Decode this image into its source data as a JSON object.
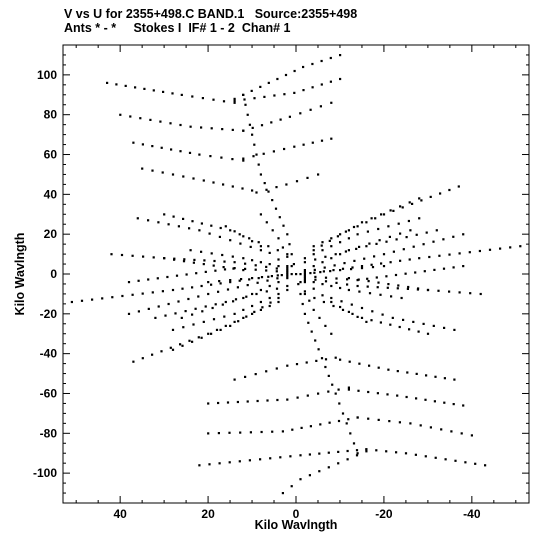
{
  "header": {
    "line1": "V vs U for 2355+498.C BAND.1   Source:2355+498",
    "line2": "Ants * - *     Stokes I  IF# 1 - 2  Chan# 1"
  },
  "chart_data": {
    "type": "scatter",
    "title": "V vs U for 2355+498.C BAND.1   Source:2355+498",
    "subtitle": "Ants * - *     Stokes I  IF# 1 - 2  Chan# 1",
    "xlabel": "Kilo Wavlngth",
    "ylabel": "Kilo Wavlngth",
    "xlim": [
      53,
      -53
    ],
    "ylim": [
      -115,
      115
    ],
    "x_ticks": [
      40,
      20,
      0,
      -20,
      -40
    ],
    "y_ticks": [
      100,
      80,
      60,
      40,
      20,
      0,
      -20,
      -40,
      -60,
      -80,
      -100
    ],
    "x_tick_labels": [
      "40",
      "20",
      "0",
      "-20",
      "-40"
    ],
    "y_tick_labels": [
      "100",
      "80",
      "60",
      "40",
      "20",
      "0",
      "-20",
      "-40",
      "-60",
      "-80",
      "-100"
    ],
    "grid": false,
    "marker_color": "#000000",
    "tracks": [
      {
        "points": [
          [
            -10,
            110
          ],
          [
            -1.6,
            104
          ],
          [
            14,
            88
          ]
        ]
      },
      {
        "points": [
          [
            -10,
            98
          ],
          [
            0.4,
            91
          ],
          [
            14,
            87
          ]
        ]
      },
      {
        "points": [
          [
            43,
            96
          ],
          [
            26,
            90
          ],
          [
            14,
            86
          ]
        ]
      },
      {
        "points": [
          [
            -8,
            86
          ],
          [
            1.4,
            79
          ],
          [
            12,
            72
          ]
        ]
      },
      {
        "points": [
          [
            40,
            80
          ],
          [
            24,
            74
          ],
          [
            12,
            72
          ]
        ]
      },
      {
        "points": [
          [
            -8,
            68
          ],
          [
            0.4,
            64
          ],
          [
            12,
            58
          ]
        ]
      },
      {
        "points": [
          [
            37,
            66
          ],
          [
            22,
            60
          ],
          [
            12,
            57
          ]
        ]
      },
      {
        "points": [
          [
            -5,
            50
          ],
          [
            2.2,
            45
          ],
          [
            9,
            41
          ]
        ]
      },
      {
        "points": [
          [
            35,
            53
          ],
          [
            21,
            47
          ],
          [
            10,
            42
          ]
        ]
      },
      {
        "points": [
          [
            12,
            90
          ],
          [
            8,
            50
          ],
          [
            2,
            20
          ],
          [
            0,
            0
          ],
          [
            -2,
            -20
          ],
          [
            -9,
            -60
          ],
          [
            -14,
            -90
          ]
        ]
      },
      {
        "points": [
          [
            3,
            -110
          ],
          [
            -1,
            -103
          ],
          [
            -16,
            -89
          ]
        ]
      },
      {
        "points": [
          [
            22,
            -96
          ],
          [
            -1,
            -91
          ],
          [
            -16,
            -88
          ]
        ]
      },
      {
        "points": [
          [
            -43,
            -96
          ],
          [
            -25,
            -90
          ],
          [
            -16,
            -88
          ]
        ]
      },
      {
        "points": [
          [
            20,
            -80
          ],
          [
            3,
            -79
          ],
          [
            -14,
            -72
          ]
        ]
      },
      {
        "points": [
          [
            -40,
            -81
          ],
          [
            -26,
            -75
          ],
          [
            -14,
            -72
          ]
        ]
      },
      {
        "points": [
          [
            20,
            -65
          ],
          [
            2,
            -63
          ],
          [
            -12,
            -57
          ]
        ]
      },
      {
        "points": [
          [
            -38,
            -66
          ],
          [
            -23,
            -61
          ],
          [
            -12,
            -58
          ]
        ]
      },
      {
        "points": [
          [
            14,
            -53
          ],
          [
            2,
            -46
          ],
          [
            -9,
            -42
          ]
        ]
      },
      {
        "points": [
          [
            -36,
            -53
          ],
          [
            -21,
            -48
          ],
          [
            -10,
            -43
          ]
        ]
      },
      {
        "points": [
          [
            -26,
            22
          ],
          [
            -12,
            12
          ],
          [
            -2,
            2
          ]
        ]
      },
      {
        "points": [
          [
            -38,
            20
          ],
          [
            -20,
            10
          ],
          [
            -2,
            1
          ]
        ]
      },
      {
        "points": [
          [
            -51,
            14
          ],
          [
            -28,
            8
          ],
          [
            -2,
            0
          ]
        ]
      },
      {
        "points": [
          [
            -38,
            4
          ],
          [
            -14,
            -3
          ],
          [
            -2,
            -1
          ]
        ]
      },
      {
        "points": [
          [
            26,
            -22
          ],
          [
            12,
            -12
          ],
          [
            2,
            -2
          ]
        ]
      },
      {
        "points": [
          [
            38,
            -20
          ],
          [
            20,
            -10
          ],
          [
            2,
            -1
          ]
        ]
      },
      {
        "points": [
          [
            51,
            -14
          ],
          [
            28,
            -8
          ],
          [
            2,
            0
          ]
        ]
      },
      {
        "points": [
          [
            38,
            -4
          ],
          [
            14,
            3
          ],
          [
            2,
            1
          ]
        ]
      },
      {
        "points": [
          [
            -37,
            44
          ],
          [
            -20,
            30
          ],
          [
            -4,
            14
          ]
        ]
      },
      {
        "points": [
          [
            -28,
            38
          ],
          [
            -15,
            26
          ],
          [
            -4,
            12
          ]
        ]
      },
      {
        "points": [
          [
            -32,
            22
          ],
          [
            -16,
            14
          ],
          [
            -2,
            6
          ]
        ]
      },
      {
        "points": [
          [
            37,
            -44
          ],
          [
            20,
            -30
          ],
          [
            4,
            -14
          ]
        ]
      },
      {
        "points": [
          [
            28,
            -38
          ],
          [
            15,
            -26
          ],
          [
            4,
            -12
          ]
        ]
      },
      {
        "points": [
          [
            32,
            -22
          ],
          [
            16,
            -14
          ],
          [
            2,
            -6
          ]
        ]
      },
      {
        "points": [
          [
            30,
            30
          ],
          [
            15,
            22
          ],
          [
            2,
            10
          ]
        ]
      },
      {
        "points": [
          [
            -28,
            28
          ],
          [
            -14,
            20
          ],
          [
            -2,
            8
          ]
        ]
      },
      {
        "points": [
          [
            30,
            8
          ],
          [
            14,
            6
          ],
          [
            2,
            2
          ]
        ]
      },
      {
        "points": [
          [
            -30,
            -30
          ],
          [
            -15,
            -22
          ],
          [
            -2,
            -10
          ]
        ]
      },
      {
        "points": [
          [
            28,
            -28
          ],
          [
            14,
            -20
          ],
          [
            2,
            -8
          ]
        ]
      },
      {
        "points": [
          [
            -30,
            -8
          ],
          [
            -14,
            -6
          ],
          [
            -2,
            -2
          ]
        ]
      },
      {
        "points": [
          [
            36,
            28
          ],
          [
            22,
            22
          ],
          [
            8,
            12
          ]
        ]
      },
      {
        "points": [
          [
            -36,
            -28
          ],
          [
            -22,
            -22
          ],
          [
            -8,
            -12
          ]
        ]
      },
      {
        "points": [
          [
            42,
            10
          ],
          [
            30,
            8
          ],
          [
            12,
            2
          ]
        ]
      },
      {
        "points": [
          [
            -42,
            -10
          ],
          [
            -30,
            -8
          ],
          [
            -12,
            -2
          ]
        ]
      },
      {
        "points": [
          [
            8,
            30
          ],
          [
            4,
            18
          ],
          [
            1,
            4
          ]
        ]
      },
      {
        "points": [
          [
            -8,
            -30
          ],
          [
            -4,
            -18
          ],
          [
            -1,
            -4
          ]
        ]
      },
      {
        "points": [
          [
            24,
            12
          ],
          [
            12,
            8
          ],
          [
            2,
            3
          ]
        ]
      },
      {
        "points": [
          [
            -24,
            -12
          ],
          [
            -12,
            -8
          ],
          [
            -2,
            -3
          ]
        ]
      },
      {
        "points": [
          [
            16,
            24
          ],
          [
            8,
            14
          ],
          [
            2,
            4
          ]
        ]
      },
      {
        "points": [
          [
            -16,
            -24
          ],
          [
            -8,
            -14
          ],
          [
            -2,
            -4
          ]
        ]
      },
      {
        "points": [
          [
            -20,
            4
          ],
          [
            -10,
            2
          ],
          [
            -1,
            0
          ]
        ]
      },
      {
        "points": [
          [
            20,
            -4
          ],
          [
            10,
            -2
          ],
          [
            1,
            0
          ]
        ]
      }
    ]
  }
}
